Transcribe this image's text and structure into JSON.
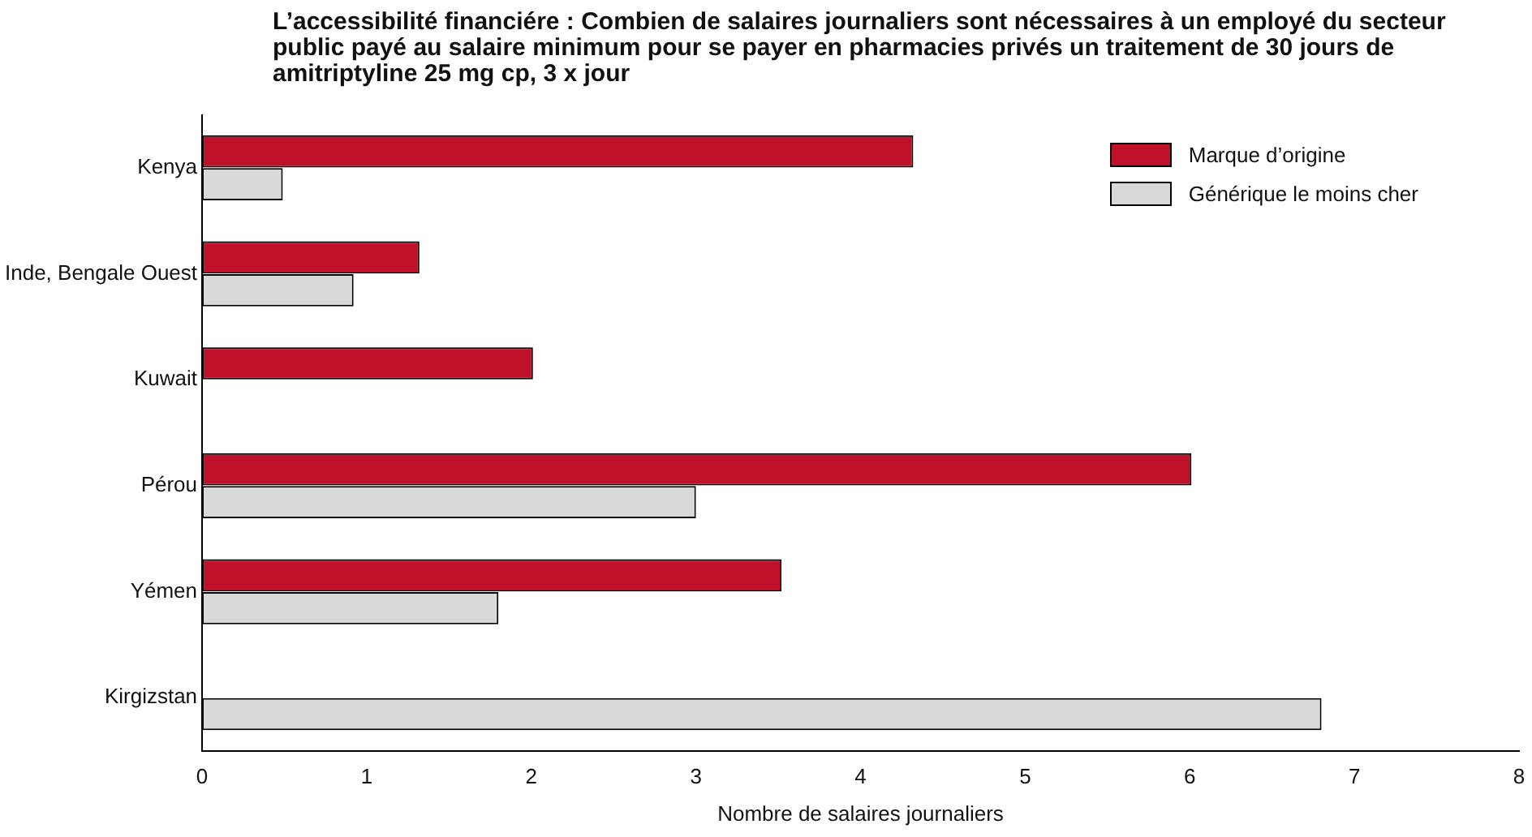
{
  "chart_data": {
    "type": "bar",
    "orientation": "horizontal",
    "title": "L’accessibilité financiére : Combien de salaires journaliers sont nécessaires à un employé du secteur public payé au salaire minimum pour se payer en pharmacies privés un traitement de 30 jours de amitriptyline 25 mg cp, 3 x jour",
    "xlabel": "Nombre de salaires journaliers",
    "categories": [
      "Kenya",
      "Inde, Bengale Ouest",
      "Kuwait",
      "Pérou",
      "Yémen",
      "Kirgizstan"
    ],
    "series": [
      {
        "name": "Marque d’origine",
        "color": "#c0112b",
        "values": [
          4.32,
          1.32,
          2.01,
          6.01,
          3.52,
          null
        ]
      },
      {
        "name": "Générique le moins cher",
        "color": "#d9d9d9",
        "values": [
          0.49,
          0.92,
          null,
          3.0,
          1.8,
          6.8
        ]
      }
    ],
    "xlim": [
      0,
      8
    ],
    "xticks": [
      0,
      1,
      2,
      3,
      4,
      5,
      6,
      7,
      8
    ],
    "grid": false,
    "legend": "top right"
  }
}
